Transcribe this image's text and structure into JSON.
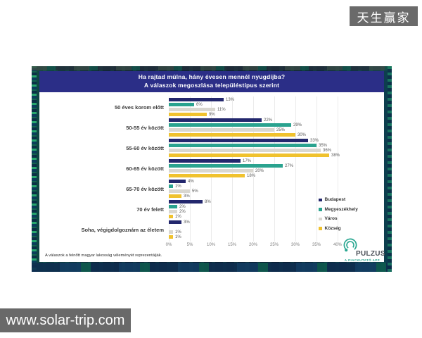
{
  "watermarks": {
    "top_right": "天生赢家",
    "bottom_left": "www.solar-trip.com"
  },
  "chart_data": {
    "type": "bar",
    "orientation": "horizontal",
    "title_line1": "Ha rajtad múlna, hány évesen mennél nyugdíjba?",
    "title_line2": "A válaszok megoszlása településtípus szerint",
    "categories": [
      "50 éves korom előtt",
      "50-55 év között",
      "55-60 év között",
      "60-65 év között",
      "65-70 év között",
      "70 év felett",
      "Soha, végigdolgoznám az életem"
    ],
    "series": [
      {
        "name": "Budapest",
        "color": "#23276d",
        "values": [
          13,
          22,
          33,
          17,
          4,
          8,
          3
        ]
      },
      {
        "name": "Megyeszékhely",
        "color": "#2aa38f",
        "values": [
          6,
          29,
          35,
          27,
          1,
          2,
          null
        ]
      },
      {
        "name": "Város",
        "color": "#d9d7d0",
        "values": [
          11,
          25,
          36,
          20,
          5,
          2,
          1
        ]
      },
      {
        "name": "Község",
        "color": "#f0c22e",
        "values": [
          9,
          30,
          38,
          18,
          3,
          1,
          1
        ]
      }
    ],
    "x_ticks": [
      "0%",
      "5%",
      "10%",
      "15%",
      "20%",
      "25%",
      "30%",
      "35%",
      "40%"
    ],
    "xlim": [
      0,
      40
    ],
    "grid": true,
    "legend_position": "right",
    "footnote": "A válaszok a felnőtt magyar lakosság véleményét reprezentálják.",
    "logo": {
      "text": "PULZUS",
      "subtext": "A PIACKUTATÓ APP"
    }
  },
  "colors": {
    "title_band": "#2b2e87",
    "band_dark": "#0a2438",
    "accent_teal": "#2aa791"
  }
}
